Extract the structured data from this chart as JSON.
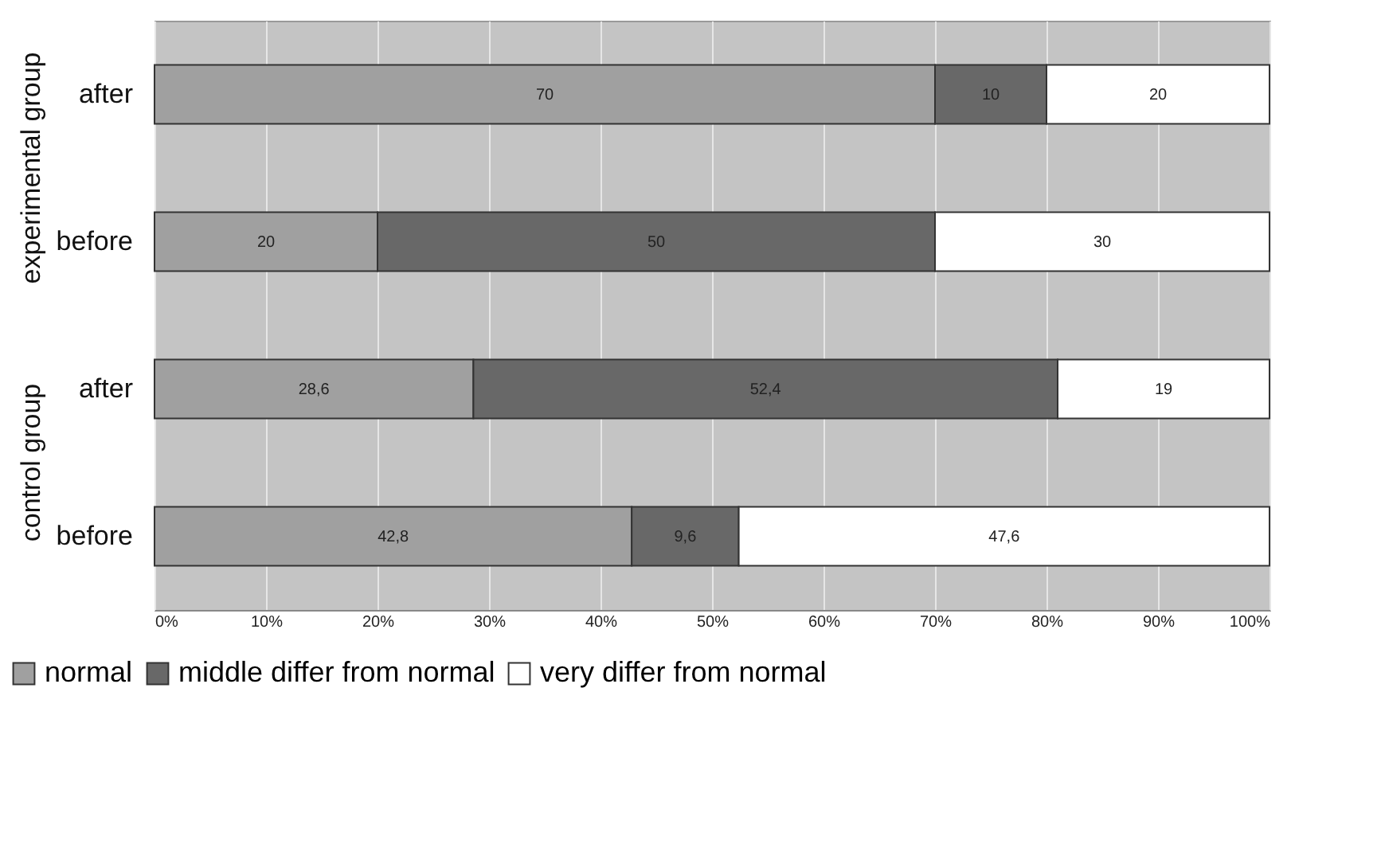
{
  "chart_data": {
    "type": "bar",
    "orientation": "horizontal",
    "stacked": true,
    "categories": [
      "after",
      "before",
      "after",
      "before"
    ],
    "series": [
      {
        "name": "normal",
        "color": "#a0a0a0",
        "values": [
          70,
          20,
          28.6,
          42.8
        ],
        "value_labels": [
          "70",
          "20",
          "28,6",
          "42,8"
        ]
      },
      {
        "name": "middle differ from normal",
        "color": "#686868",
        "values": [
          10,
          50,
          52.4,
          9.6
        ],
        "value_labels": [
          "10",
          "50",
          "52,4",
          "9,6"
        ]
      },
      {
        "name": "very differ from normal",
        "color": "#ffffff",
        "values": [
          20,
          30,
          19,
          47.6
        ],
        "value_labels": [
          "20",
          "30",
          "19",
          "47,6"
        ]
      }
    ],
    "annotations": [
      "experimental group",
      "control group"
    ],
    "xlim": [
      0,
      100
    ],
    "xticks": [
      {
        "value": 0,
        "label": "0%"
      },
      {
        "value": 10,
        "label": "10%"
      },
      {
        "value": 20,
        "label": "20%"
      },
      {
        "value": 30,
        "label": "30%"
      },
      {
        "value": 40,
        "label": "40%"
      },
      {
        "value": 50,
        "label": "50%"
      },
      {
        "value": 60,
        "label": "60%"
      },
      {
        "value": 70,
        "label": "70%"
      },
      {
        "value": 80,
        "label": "80%"
      },
      {
        "value": 90,
        "label": "90%"
      },
      {
        "value": 100,
        "label": "100%"
      }
    ],
    "grid": "x",
    "legend": "bottom"
  }
}
